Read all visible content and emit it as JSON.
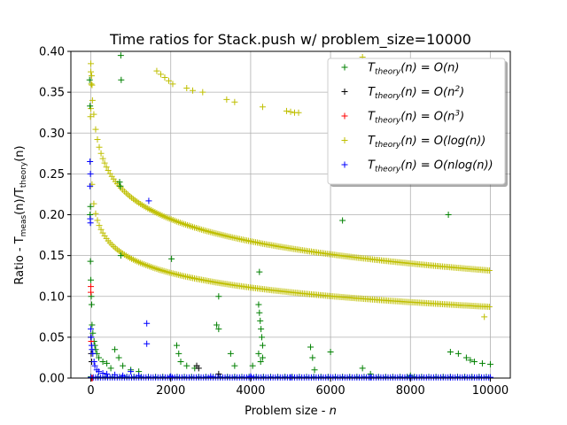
{
  "chart_data": {
    "type": "scatter",
    "title": "Time ratios for Stack.push w/ problem_size=10000",
    "xlabel_text": "Problem size - ",
    "xlabel_var": "n",
    "ylabel_text": "Ratio - T",
    "ylabel_sub1": "meas",
    "ylabel_mid": "(n)/T",
    "ylabel_sub2": "theory",
    "ylabel_end": "(n)",
    "xlim": [
      -500,
      10500
    ],
    "ylim": [
      0,
      0.4
    ],
    "x_ticks": [
      0,
      2000,
      4000,
      6000,
      8000,
      10000
    ],
    "x_tick_labels": [
      "0",
      "2000",
      "4000",
      "6000",
      "8000",
      "10000"
    ],
    "y_ticks": [
      0.0,
      0.05,
      0.1,
      0.15,
      0.2,
      0.25,
      0.3,
      0.35,
      0.4
    ],
    "y_tick_labels": [
      "0.00",
      "0.05",
      "0.10",
      "0.15",
      "0.20",
      "0.25",
      "0.30",
      "0.35",
      "0.40"
    ],
    "grid": true,
    "legend_position": "top-right",
    "series": [
      {
        "name": "T_theory(n) = O(n)",
        "label_pre": "T",
        "label_sub": "theory",
        "label_post": "(n) = O(n)",
        "color": "#008000",
        "points": [
          [
            -30,
            0.365
          ],
          [
            -20,
            0.333
          ],
          [
            -10,
            0.21
          ],
          [
            -20,
            0.2
          ],
          [
            -10,
            0.143
          ],
          [
            0,
            0.12
          ],
          [
            10,
            0.1
          ],
          [
            20,
            0.09
          ],
          [
            30,
            0.065
          ],
          [
            50,
            0.055
          ],
          [
            80,
            0.045
          ],
          [
            100,
            0.04
          ],
          [
            120,
            0.035
          ],
          [
            150,
            0.03
          ],
          [
            200,
            0.025
          ],
          [
            300,
            0.02
          ],
          [
            400,
            0.018
          ],
          [
            500,
            0.012
          ],
          [
            600,
            0.035
          ],
          [
            700,
            0.025
          ],
          [
            750,
            0.395
          ],
          [
            760,
            0.365
          ],
          [
            720,
            0.24
          ],
          [
            740,
            0.235
          ],
          [
            750,
            0.15
          ],
          [
            800,
            0.015
          ],
          [
            1000,
            0.01
          ],
          [
            1200,
            0.008
          ],
          [
            2020,
            0.146
          ],
          [
            2150,
            0.04
          ],
          [
            2200,
            0.03
          ],
          [
            2250,
            0.02
          ],
          [
            2400,
            0.015
          ],
          [
            2600,
            0.012
          ],
          [
            3200,
            0.1
          ],
          [
            3150,
            0.065
          ],
          [
            3200,
            0.06
          ],
          [
            3500,
            0.03
          ],
          [
            3600,
            0.015
          ],
          [
            4050,
            0.015
          ],
          [
            4200,
            0.09
          ],
          [
            4220,
            0.08
          ],
          [
            4240,
            0.07
          ],
          [
            4260,
            0.06
          ],
          [
            4280,
            0.05
          ],
          [
            4300,
            0.04
          ],
          [
            4200,
            0.03
          ],
          [
            4250,
            0.02
          ],
          [
            4300,
            0.025
          ],
          [
            4220,
            0.13
          ],
          [
            5500,
            0.038
          ],
          [
            5550,
            0.025
          ],
          [
            5600,
            0.01
          ],
          [
            6000,
            0.032
          ],
          [
            6300,
            0.193
          ],
          [
            6800,
            0.012
          ],
          [
            7000,
            0.005
          ],
          [
            8000,
            0.003
          ],
          [
            8950,
            0.2
          ],
          [
            9000,
            0.032
          ],
          [
            9200,
            0.03
          ],
          [
            9400,
            0.025
          ],
          [
            9500,
            0.022
          ],
          [
            9600,
            0.02
          ],
          [
            9800,
            0.018
          ],
          [
            10000,
            0.017
          ]
        ]
      },
      {
        "name": "T_theory(n) = O(n^2)",
        "label_pre": "T",
        "label_sub": "theory",
        "label_post": "(n) = O(n",
        "label_sup": "2",
        "label_end": ")",
        "color": "#000000",
        "points": [
          [
            0,
            0.05
          ],
          [
            10,
            0.03
          ],
          [
            20,
            0.02
          ],
          [
            2650,
            0.015
          ],
          [
            2700,
            0.012
          ],
          [
            3200,
            0.005
          ]
        ]
      },
      {
        "name": "T_theory(n) = O(n^3)",
        "label_pre": "T",
        "label_sub": "theory",
        "label_post": "(n) = O(n",
        "label_sup": "3",
        "label_end": ")",
        "color": "#ff0000",
        "points": [
          [
            0,
            0.112
          ],
          [
            0,
            0.105
          ],
          [
            10,
            0.045
          ],
          [
            5,
            0.0
          ],
          [
            20,
            0.0
          ],
          [
            40,
            0.0
          ]
        ]
      },
      {
        "name": "T_theory(n) = O(log(n))",
        "label_pre": "T",
        "label_sub": "theory",
        "label_post": "(n) = O(log(n))",
        "color": "#bfbf00",
        "points": [
          [
            9850,
            0.075
          ]
        ]
      },
      {
        "name": "T_theory(n) = O(nlog(n))",
        "label_pre": "T",
        "label_sub": "theory",
        "label_post": "(n) = O(nlog(n))",
        "color": "#0000ff",
        "points": [
          [
            -20,
            0.265
          ],
          [
            -10,
            0.25
          ],
          [
            -20,
            0.235
          ],
          [
            -15,
            0.195
          ],
          [
            -10,
            0.19
          ],
          [
            0,
            0.06
          ],
          [
            10,
            0.05
          ],
          [
            20,
            0.04
          ],
          [
            30,
            0.035
          ],
          [
            50,
            0.03
          ],
          [
            80,
            0.02
          ],
          [
            100,
            0.015
          ],
          [
            150,
            0.01
          ],
          [
            200,
            0.008
          ],
          [
            300,
            0.006
          ],
          [
            400,
            0.005
          ],
          [
            600,
            0.004
          ],
          [
            800,
            0.003
          ],
          [
            1000,
            0.008
          ],
          [
            1200,
            0.003
          ],
          [
            1450,
            0.217
          ],
          [
            1400,
            0.067
          ],
          [
            1400,
            0.042
          ],
          [
            2000,
            0.002
          ],
          [
            3000,
            0.002
          ],
          [
            4000,
            0.002
          ],
          [
            5000,
            0.001
          ],
          [
            6000,
            0.001
          ],
          [
            7000,
            0.001
          ],
          [
            8000,
            0.001
          ],
          [
            9000,
            0.001
          ],
          [
            10000,
            0.001
          ]
        ]
      }
    ]
  }
}
